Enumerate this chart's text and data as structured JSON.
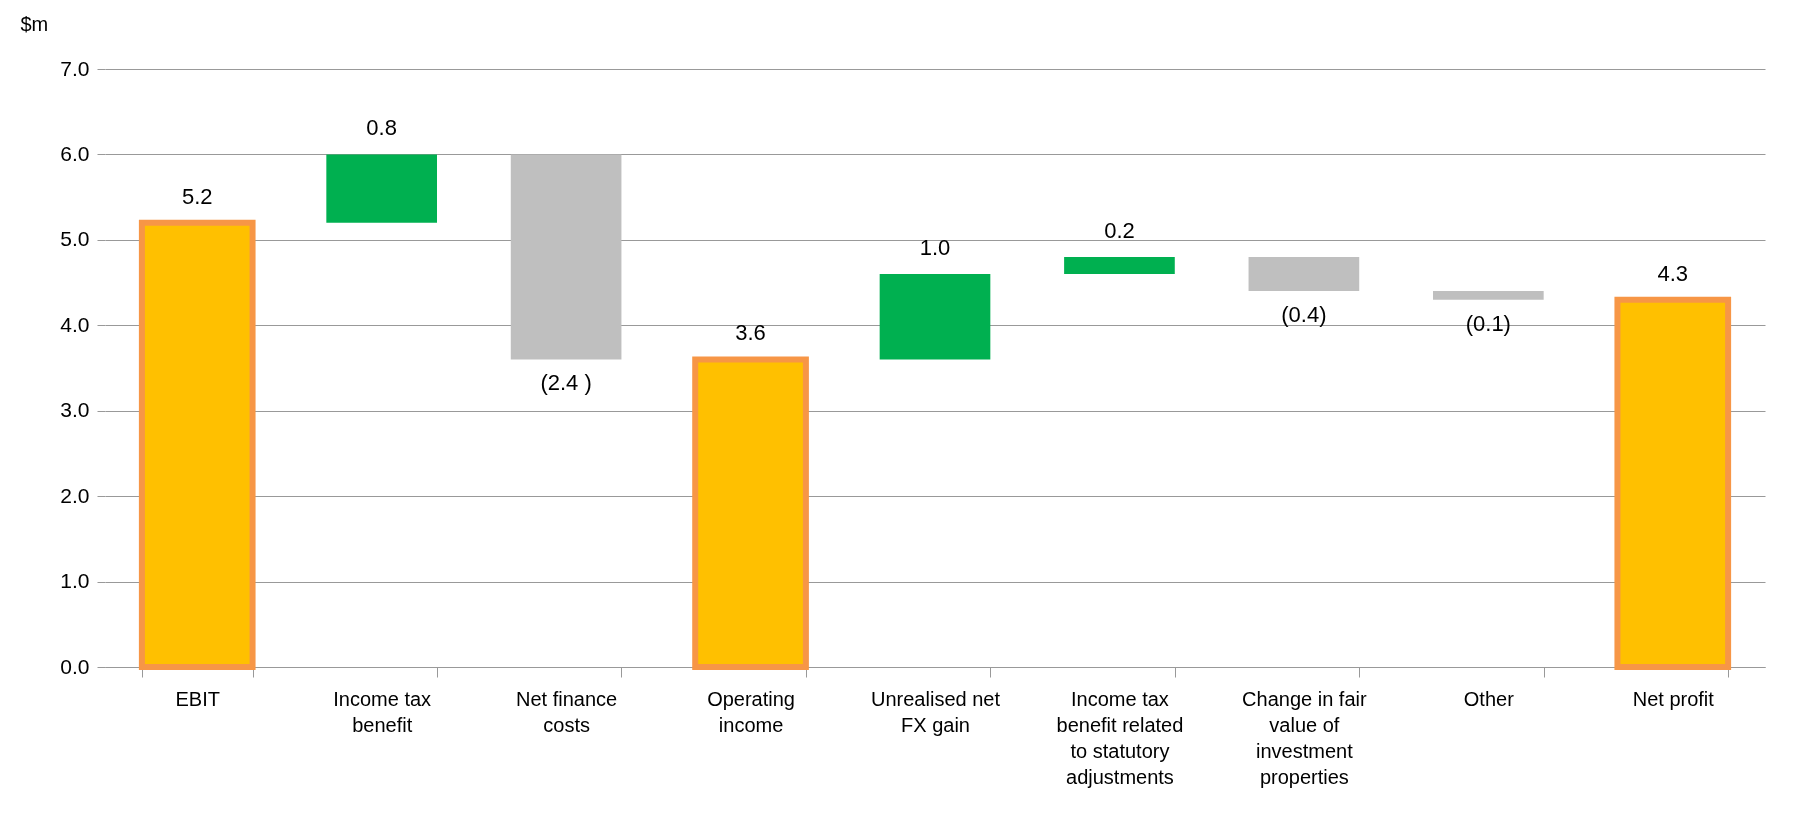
{
  "chart_data": {
    "type": "bar",
    "categories": [
      "EBIT",
      "Income tax benefit",
      "Net finance costs",
      "Operating income",
      "Unrealised net FX gain",
      "Income tax benefit related to statutory adjustments",
      "Change in fair value of investment properties",
      "Other",
      "Net profit"
    ],
    "values": [
      5.2,
      0.8,
      -2.4,
      3.6,
      1.0,
      0.2,
      -0.4,
      -0.1,
      4.3
    ],
    "base": [
      0,
      5.2,
      6.0,
      0,
      3.6,
      4.6,
      4.8,
      4.4,
      0
    ],
    "colors": [
      "#ffc000",
      "#00b050",
      "#bfbfbf",
      "#ffc000",
      "#00b050",
      "#00b050",
      "#bfbfbf",
      "#bfbfbf",
      "#ffc000"
    ],
    "value_labels": [
      "5.2",
      "0.8",
      "(2.4 )",
      "3.6",
      "1.0",
      "0.2",
      "(0.4)",
      "(0.1)",
      "4.3"
    ],
    "ylabel": "$m",
    "ylim": [
      0,
      7
    ],
    "yticks": [
      {
        "value": 0,
        "label": "0.0"
      },
      {
        "value": 1,
        "label": "1.0"
      },
      {
        "value": 2,
        "label": "2.0"
      },
      {
        "value": 3,
        "label": "3.0"
      },
      {
        "value": 4,
        "label": "4.0"
      },
      {
        "value": 5,
        "label": "5.0"
      },
      {
        "value": 6,
        "label": "6.0"
      },
      {
        "value": 7,
        "label": "7.0"
      }
    ],
    "grid": "y"
  }
}
